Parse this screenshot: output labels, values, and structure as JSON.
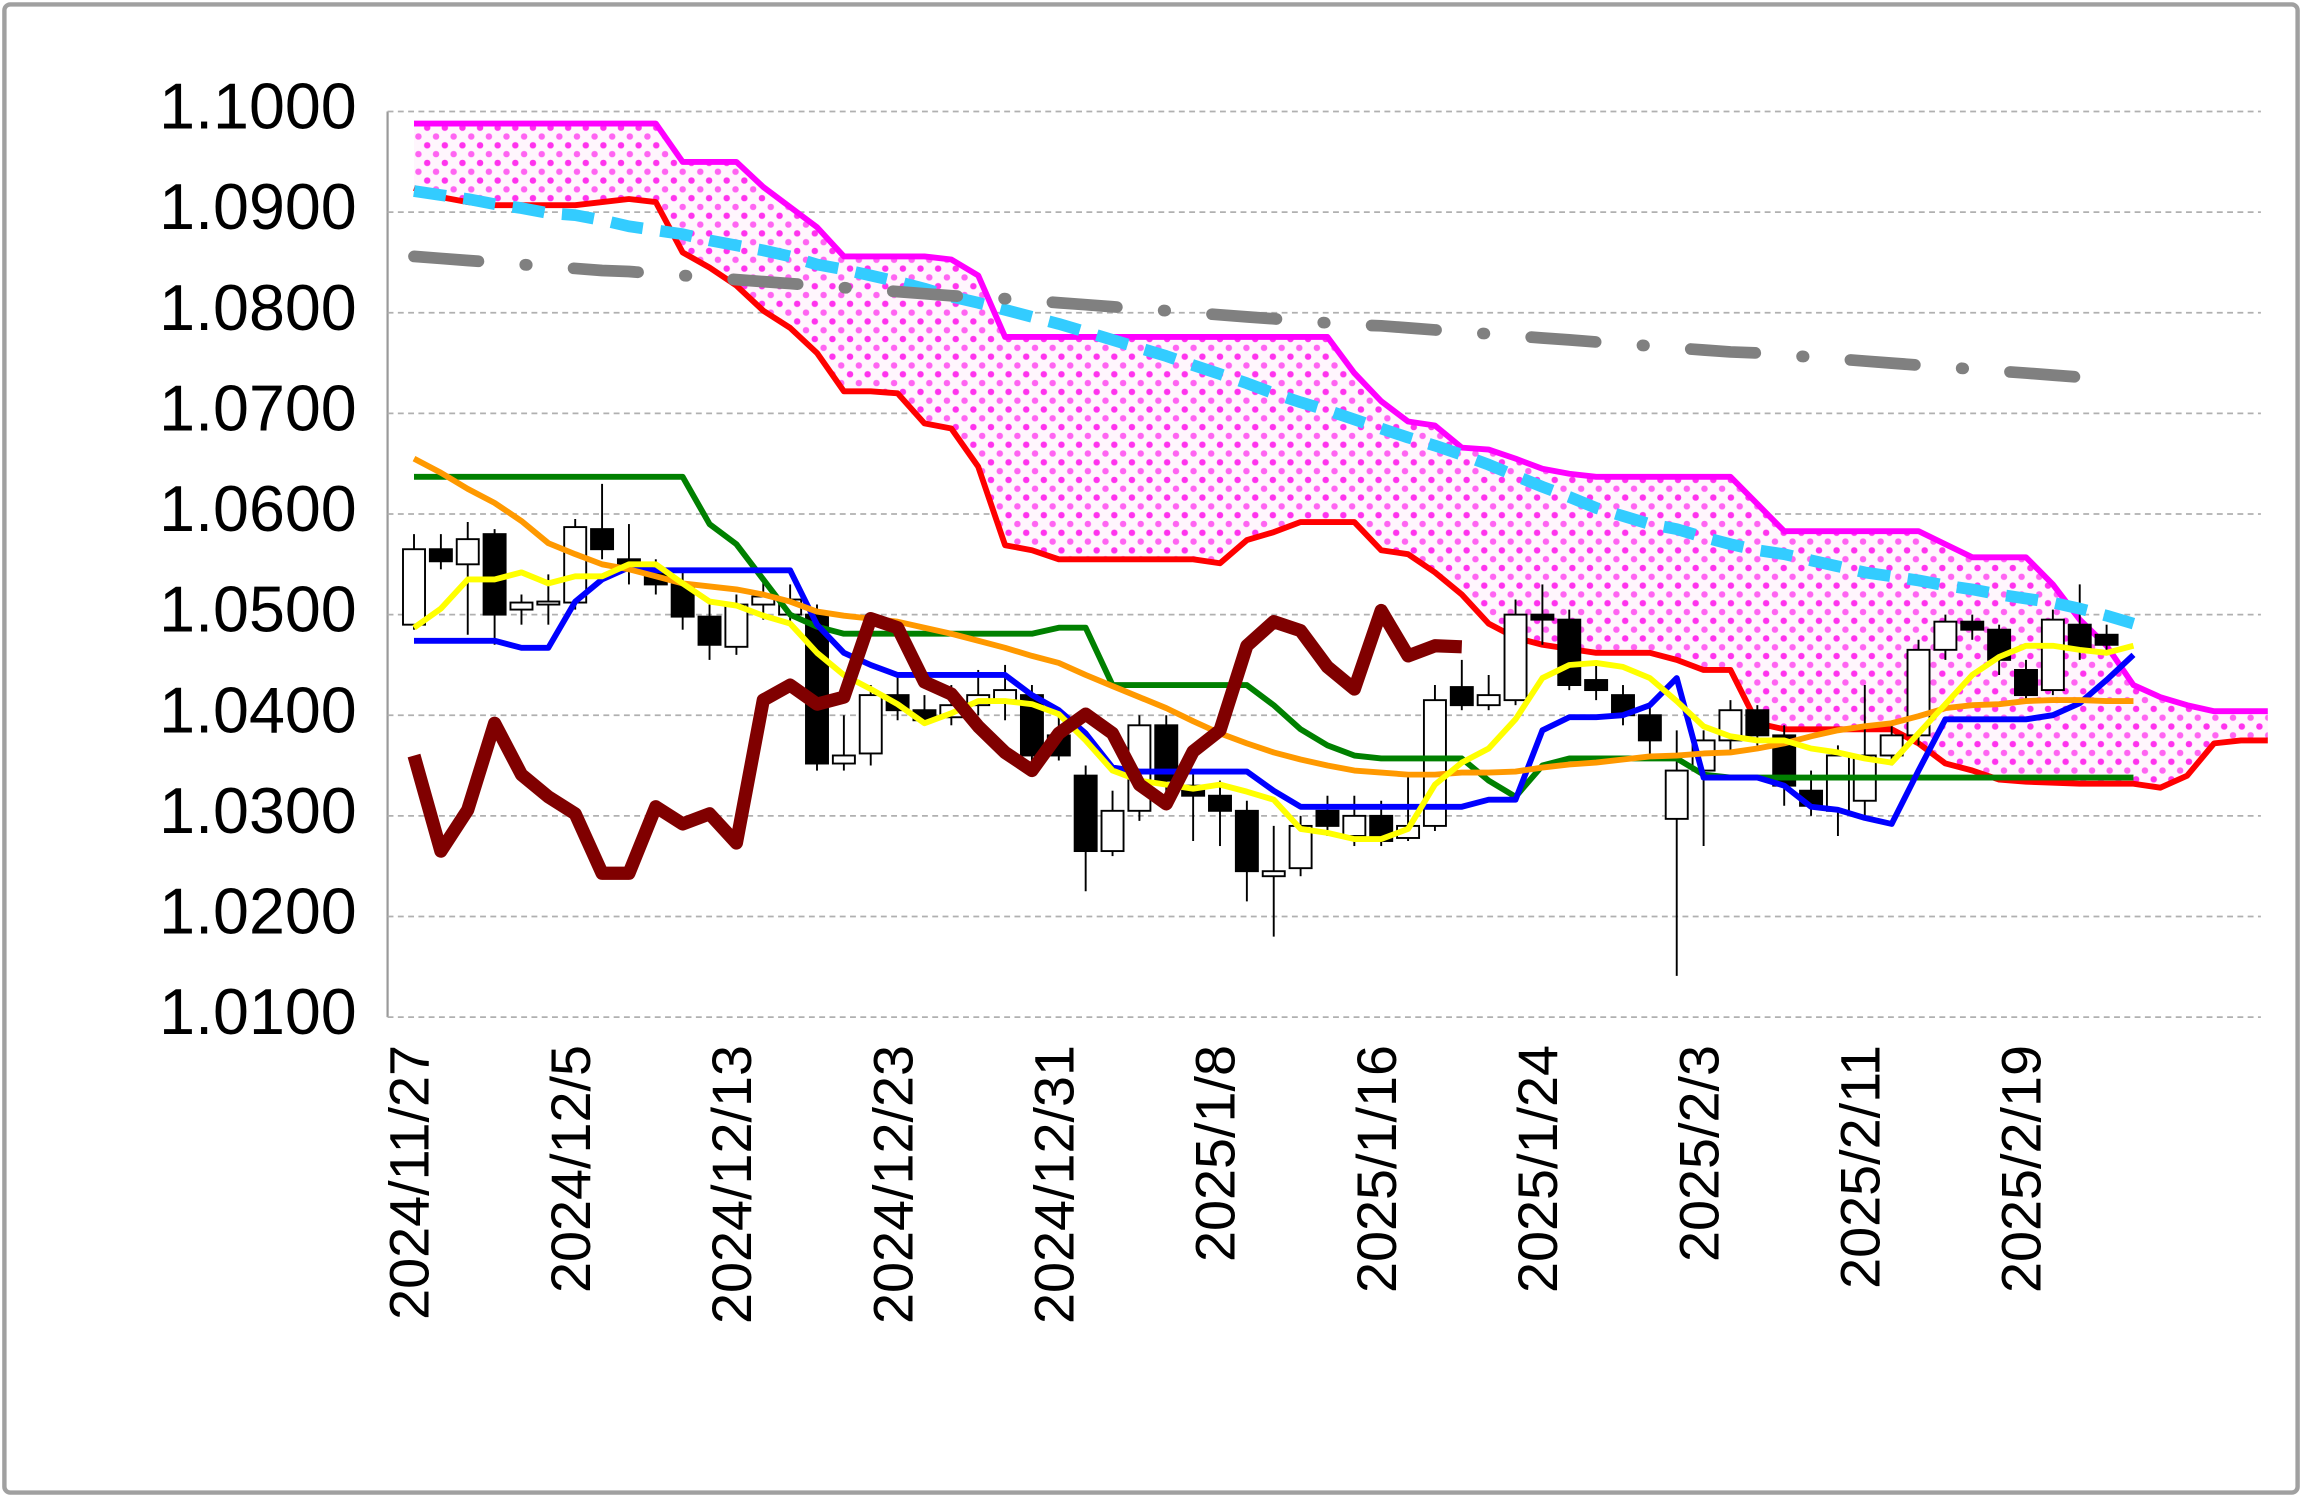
{
  "chart_data": {
    "type": "candlestick",
    "categories": [
      "2024/11/27",
      null,
      null,
      null,
      null,
      null,
      "2024/12/5",
      null,
      null,
      null,
      null,
      null,
      "2024/12/13",
      null,
      null,
      null,
      null,
      null,
      "2024/12/23",
      null,
      null,
      null,
      null,
      null,
      "2024/12/31",
      null,
      null,
      null,
      null,
      null,
      "2025/1/8",
      null,
      null,
      null,
      null,
      null,
      "2025/1/16",
      null,
      null,
      null,
      null,
      null,
      "2025/1/24",
      null,
      null,
      null,
      null,
      null,
      "2025/2/3",
      null,
      null,
      null,
      null,
      null,
      "2025/2/11",
      null,
      null,
      null,
      null,
      null,
      "2025/2/19",
      null,
      null,
      null,
      null,
      null,
      null,
      null,
      null,
      null
    ],
    "open": [
      1.049,
      1.0565,
      1.055,
      1.058,
      1.0505,
      1.051,
      1.0512,
      1.0585,
      1.0555,
      1.0545,
      1.053,
      1.0498,
      1.0468,
      1.051,
      1.05,
      1.05,
      1.0352,
      1.0362,
      1.042,
      1.0405,
      1.0398,
      1.041,
      1.0415,
      1.042,
      1.038,
      1.034,
      1.0265,
      1.0305,
      1.039,
      1.033,
      1.032,
      1.0305,
      1.024,
      1.0248,
      1.0305,
      1.028,
      1.03,
      1.0278,
      1.029,
      1.0428,
      1.041,
      1.0415,
      1.05,
      1.0495,
      1.0435,
      1.042,
      1.04,
      1.0297,
      1.0345,
      1.0375,
      1.0405,
      1.038,
      1.0325,
      1.0305,
      1.0315,
      1.036,
      1.038,
      1.0465,
      1.0493,
      1.0485,
      1.0445,
      1.0425,
      1.049,
      1.048,
      null,
      null,
      null,
      null,
      null,
      null
    ],
    "high": [
      1.058,
      1.058,
      1.0592,
      1.0585,
      1.052,
      1.054,
      1.0595,
      1.063,
      1.059,
      1.0555,
      1.0545,
      1.051,
      1.052,
      1.0535,
      1.053,
      1.051,
      1.04,
      1.043,
      1.044,
      1.042,
      1.043,
      1.0445,
      1.045,
      1.043,
      1.04,
      1.035,
      1.0325,
      1.04,
      1.04,
      1.0345,
      1.0335,
      1.0315,
      1.029,
      1.03,
      1.032,
      1.032,
      1.0315,
      1.034,
      1.043,
      1.0455,
      1.044,
      1.0515,
      1.053,
      1.0505,
      1.045,
      1.043,
      1.041,
      1.0385,
      1.0385,
      1.0415,
      1.041,
      1.039,
      1.0345,
      1.037,
      1.043,
      1.039,
      1.0475,
      1.05,
      1.05,
      1.049,
      1.0455,
      1.0505,
      1.053,
      1.049,
      null,
      null,
      null,
      null,
      null,
      null
    ],
    "low": [
      1.0485,
      1.0545,
      1.048,
      1.047,
      1.049,
      1.049,
      1.0505,
      1.0555,
      1.053,
      1.052,
      1.0485,
      1.0455,
      1.046,
      1.0495,
      1.049,
      1.0345,
      1.0345,
      1.035,
      1.0395,
      1.039,
      1.039,
      1.04,
      1.0395,
      1.0355,
      1.0355,
      1.0225,
      1.026,
      1.0295,
      1.0315,
      1.0275,
      1.027,
      1.0215,
      1.018,
      1.024,
      1.028,
      1.027,
      1.027,
      1.0275,
      1.0285,
      1.0405,
      1.0405,
      1.041,
      1.047,
      1.0425,
      1.0415,
      1.039,
      1.036,
      1.0141,
      1.027,
      1.0365,
      1.037,
      1.031,
      1.03,
      1.028,
      1.03,
      1.035,
      1.037,
      1.0455,
      1.0475,
      1.044,
      1.0415,
      1.042,
      1.0455,
      1.046,
      null,
      null,
      null,
      null,
      null,
      null
    ],
    "close": [
      1.0565,
      1.0553,
      1.0575,
      1.05,
      1.0512,
      1.0513,
      1.0587,
      1.0565,
      1.0545,
      1.053,
      1.0498,
      1.047,
      1.051,
      1.0518,
      1.0515,
      1.0352,
      1.036,
      1.042,
      1.0405,
      1.0395,
      1.041,
      1.042,
      1.0425,
      1.036,
      1.036,
      1.0265,
      1.0305,
      1.039,
      1.0335,
      1.032,
      1.0305,
      1.0245,
      1.0245,
      1.029,
      1.029,
      1.03,
      1.0275,
      1.029,
      1.0415,
      1.041,
      1.042,
      1.05,
      1.0495,
      1.043,
      1.0425,
      1.04,
      1.0375,
      1.0345,
      1.0375,
      1.0405,
      1.038,
      1.033,
      1.031,
      1.036,
      1.036,
      1.038,
      1.0465,
      1.0493,
      1.0485,
      1.0455,
      1.042,
      1.0495,
      1.0465,
      1.047,
      null,
      null,
      null,
      null,
      null,
      null
    ],
    "up_color": "#ffffff",
    "down_color": "#000000",
    "cloud_color": "#ff33ee",
    "series": [
      {
        "color": "#ff00ff",
        "style": "solid",
        "cloud_edge": true,
        "values": [
          1.0988,
          1.0988,
          1.0988,
          1.0988,
          1.0988,
          1.0988,
          1.0988,
          1.0988,
          1.0988,
          1.0988,
          1.095,
          1.095,
          1.095,
          1.0925,
          1.0905,
          1.0885,
          1.0856,
          1.0856,
          1.0856,
          1.0856,
          1.0853,
          1.0837,
          1.0776,
          1.0776,
          1.0776,
          1.0776,
          1.0776,
          1.0776,
          1.0776,
          1.0776,
          1.0776,
          1.0776,
          1.0776,
          1.0776,
          1.0776,
          1.074,
          1.0712,
          1.0692,
          1.0688,
          1.0666,
          1.0664,
          1.0655,
          1.0645,
          1.064,
          1.0637,
          1.0637,
          1.0637,
          1.0637,
          1.0637,
          1.0637,
          1.061,
          1.0583,
          1.0583,
          1.0583,
          1.0583,
          1.0583,
          1.0583,
          1.057,
          1.0557,
          1.0557,
          1.0557,
          1.053,
          1.0495,
          1.0469,
          1.043,
          1.0418,
          1.041,
          1.0404,
          1.0404,
          1.0404
        ]
      },
      {
        "color": "#ff0000",
        "style": "solid",
        "cloud_edge": true,
        "values": [
          1.0924,
          1.0915,
          1.091,
          1.0907,
          1.0907,
          1.0907,
          1.0907,
          1.091,
          1.0913,
          1.091,
          1.086,
          1.0845,
          1.0827,
          1.0802,
          1.0785,
          1.076,
          1.0722,
          1.0722,
          1.072,
          1.069,
          1.0685,
          1.0647,
          1.0569,
          1.0564,
          1.0555,
          1.0555,
          1.0555,
          1.0555,
          1.0555,
          1.0555,
          1.0551,
          1.0574,
          1.0582,
          1.0592,
          1.0592,
          1.0592,
          1.0564,
          1.056,
          1.0542,
          1.052,
          1.0491,
          1.0477,
          1.047,
          1.0466,
          1.0462,
          1.0462,
          1.0462,
          1.0455,
          1.0445,
          1.0445,
          1.0392,
          1.0386,
          1.0386,
          1.0386,
          1.0386,
          1.0386,
          1.0372,
          1.0352,
          1.0345,
          1.0336,
          1.0334,
          1.0333,
          1.0332,
          1.0332,
          1.0332,
          1.0328,
          1.034,
          1.0372,
          1.0375,
          1.0375
        ]
      },
      {
        "color": "#008000",
        "style": "solid",
        "values": [
          1.0637,
          1.0637,
          1.0637,
          1.0637,
          1.0637,
          1.0637,
          1.0637,
          1.0637,
          1.0637,
          1.0637,
          1.0637,
          1.059,
          1.057,
          1.0535,
          1.05,
          1.0488,
          1.0481,
          1.0481,
          1.0481,
          1.0481,
          1.0481,
          1.0481,
          1.0481,
          1.0481,
          1.0487,
          1.0487,
          1.043,
          1.043,
          1.043,
          1.043,
          1.043,
          1.043,
          1.041,
          1.0386,
          1.037,
          1.036,
          1.0357,
          1.0357,
          1.0357,
          1.0357,
          1.0335,
          1.0319,
          1.035,
          1.0357,
          1.0357,
          1.0357,
          1.0357,
          1.0357,
          1.0341,
          1.0338,
          1.0338,
          1.0338,
          1.0338,
          1.0338,
          1.0338,
          1.0338,
          1.0338,
          1.0338,
          1.0338,
          1.0338,
          1.0338,
          1.0338,
          1.0338,
          1.0338,
          1.0338,
          null,
          null,
          null,
          null,
          null
        ]
      },
      {
        "color": "#0000ff",
        "style": "solid",
        "values": [
          1.0474,
          1.0474,
          1.0474,
          1.0474,
          1.0467,
          1.0467,
          1.0513,
          1.0535,
          1.0547,
          1.0544,
          1.0544,
          1.0544,
          1.0544,
          1.0544,
          1.0544,
          1.049,
          1.0462,
          1.045,
          1.044,
          1.044,
          1.044,
          1.044,
          1.044,
          1.042,
          1.0405,
          1.0382,
          1.0348,
          1.0344,
          1.0344,
          1.0344,
          1.0344,
          1.0344,
          1.0325,
          1.0309,
          1.0309,
          1.0309,
          1.0309,
          1.0309,
          1.0309,
          1.0309,
          1.0316,
          1.0316,
          1.0385,
          1.0398,
          1.0398,
          1.04,
          1.041,
          1.0437,
          1.0338,
          1.0338,
          1.0338,
          1.033,
          1.0309,
          1.0306,
          1.0298,
          1.0292,
          1.0345,
          1.0396,
          1.0396,
          1.0396,
          1.0396,
          1.04,
          1.0412,
          1.0435,
          1.046,
          null,
          null,
          null,
          null,
          null
        ]
      },
      {
        "color": "#ff9900",
        "style": "solid",
        "values": [
          1.0655,
          1.0641,
          1.0625,
          1.0611,
          1.0593,
          1.0571,
          1.056,
          1.055,
          1.0545,
          1.0538,
          1.0531,
          1.0528,
          1.0525,
          1.052,
          1.0513,
          1.0503,
          1.0499,
          1.0496,
          1.0493,
          1.0487,
          1.0481,
          1.0474,
          1.0467,
          1.0459,
          1.0452,
          1.044,
          1.0429,
          1.0418,
          1.0407,
          1.0394,
          1.0382,
          1.0372,
          1.0363,
          1.0356,
          1.035,
          1.0345,
          1.0343,
          1.0341,
          1.0341,
          1.0343,
          1.0343,
          1.0344,
          1.0348,
          1.0351,
          1.0353,
          1.0356,
          1.0359,
          1.036,
          1.0362,
          1.0363,
          1.0367,
          1.0372,
          1.0379,
          1.0385,
          1.0389,
          1.0392,
          1.0399,
          1.0407,
          1.041,
          1.0411,
          1.0414,
          1.0415,
          1.0415,
          1.0414,
          1.0414,
          null,
          null,
          null,
          null,
          null
        ]
      },
      {
        "color": "#ffff00",
        "style": "solid",
        "values": [
          1.0487,
          1.0506,
          1.0535,
          1.0535,
          1.0542,
          1.0531,
          1.0538,
          1.0538,
          1.055,
          1.055,
          1.0531,
          1.0513,
          1.0509,
          1.0499,
          1.0491,
          1.0462,
          1.044,
          1.0426,
          1.0411,
          1.0392,
          1.0402,
          1.0414,
          1.0414,
          1.0411,
          1.0401,
          1.0375,
          1.0345,
          1.0335,
          1.0331,
          1.0327,
          1.0331,
          1.0324,
          1.0316,
          1.0287,
          1.0283,
          1.0277,
          1.0277,
          1.0287,
          1.0331,
          1.0353,
          1.0367,
          1.0396,
          1.0437,
          1.045,
          1.0452,
          1.0448,
          1.0437,
          1.0414,
          1.0389,
          1.0379,
          1.0375,
          1.0375,
          1.0367,
          1.0363,
          1.0357,
          1.0353,
          1.0382,
          1.0411,
          1.044,
          1.0458,
          1.0469,
          1.0469,
          1.0465,
          1.0462,
          1.0469,
          null,
          null,
          null,
          null,
          null
        ]
      },
      {
        "color": "#33ccff",
        "style": "dashed",
        "values": [
          1.0921,
          1.0917,
          1.0913,
          1.0908,
          1.0904,
          1.0899,
          1.0897,
          1.0892,
          1.0886,
          1.0882,
          1.0878,
          1.0872,
          1.0867,
          1.0862,
          1.0856,
          1.0848,
          1.0843,
          1.0837,
          1.0831,
          1.0824,
          1.0816,
          1.081,
          1.0803,
          1.0796,
          1.0789,
          1.0781,
          1.0773,
          1.0765,
          1.0757,
          1.0748,
          1.0739,
          1.073,
          1.072,
          1.0711,
          1.0703,
          1.0694,
          1.0685,
          1.0676,
          1.0668,
          1.0659,
          1.0649,
          1.0638,
          1.0627,
          1.0617,
          1.0606,
          1.0598,
          1.059,
          1.0585,
          1.0577,
          1.057,
          1.0564,
          1.056,
          1.0554,
          1.0548,
          1.0542,
          1.0538,
          1.0534,
          1.0529,
          1.0525,
          1.052,
          1.0516,
          1.0512,
          1.0506,
          1.0499,
          1.0491,
          null,
          null,
          null,
          null,
          null
        ]
      },
      {
        "color": "#808080",
        "style": "dash-dot",
        "values": [
          1.0856,
          1.0854,
          1.0852,
          1.085,
          1.0848,
          1.0846,
          1.0844,
          1.0842,
          1.0841,
          1.0839,
          1.0837,
          1.0835,
          1.0833,
          1.0831,
          1.0829,
          1.0827,
          1.0825,
          1.0823,
          1.0821,
          1.0819,
          1.0817,
          1.0815,
          1.0814,
          1.0812,
          1.081,
          1.0808,
          1.0806,
          1.0804,
          1.0802,
          1.08,
          1.0798,
          1.0796,
          1.0794,
          1.0792,
          1.079,
          1.0788,
          1.0787,
          1.0785,
          1.0783,
          1.0781,
          1.0779,
          1.0777,
          1.0775,
          1.0773,
          1.0771,
          1.0769,
          1.0767,
          1.0765,
          1.0763,
          1.0761,
          1.076,
          1.0758,
          1.0756,
          1.0754,
          1.0752,
          1.075,
          1.0748,
          1.0746,
          1.0744,
          1.0742,
          1.074,
          1.0738,
          1.0736,
          1.0734,
          null,
          null,
          null,
          null,
          null,
          null
        ]
      },
      {
        "color": "#800000",
        "style": "thick",
        "values": [
          1.036,
          1.0265,
          1.0306,
          1.0392,
          1.0341,
          1.0319,
          1.0302,
          1.0243,
          1.0243,
          1.0309,
          1.0292,
          1.0302,
          1.0273,
          1.0415,
          1.043,
          1.0411,
          1.0418,
          1.0496,
          1.0487,
          1.0433,
          1.0421,
          1.0389,
          1.0363,
          1.0345,
          1.0382,
          1.0401,
          1.0382,
          1.0331,
          1.0312,
          1.0364,
          1.0385,
          1.0469,
          1.0493,
          1.0484,
          1.0448,
          1.0426,
          1.0504,
          1.0459,
          1.0469,
          1.0468,
          null,
          null,
          null,
          null,
          null,
          null,
          null,
          null,
          null,
          null,
          null,
          null,
          null,
          null,
          null,
          null,
          null,
          null,
          null,
          null,
          null,
          null,
          null,
          null,
          null,
          null,
          null,
          null,
          null,
          null
        ]
      }
    ],
    "ylim": [
      1.01,
      1.1
    ],
    "yticks": [
      {
        "value": 1.01,
        "label": "1.0100"
      },
      {
        "value": 1.02,
        "label": "1.0200"
      },
      {
        "value": 1.03,
        "label": "1.0300"
      },
      {
        "value": 1.04,
        "label": "1.0400"
      },
      {
        "value": 1.05,
        "label": "1.0500"
      },
      {
        "value": 1.06,
        "label": "1.0600"
      },
      {
        "value": 1.07,
        "label": "1.0700"
      },
      {
        "value": 1.08,
        "label": "1.0800"
      },
      {
        "value": 1.09,
        "label": "1.0900"
      },
      {
        "value": 1.1,
        "label": "1.1000"
      }
    ],
    "grid": true
  }
}
